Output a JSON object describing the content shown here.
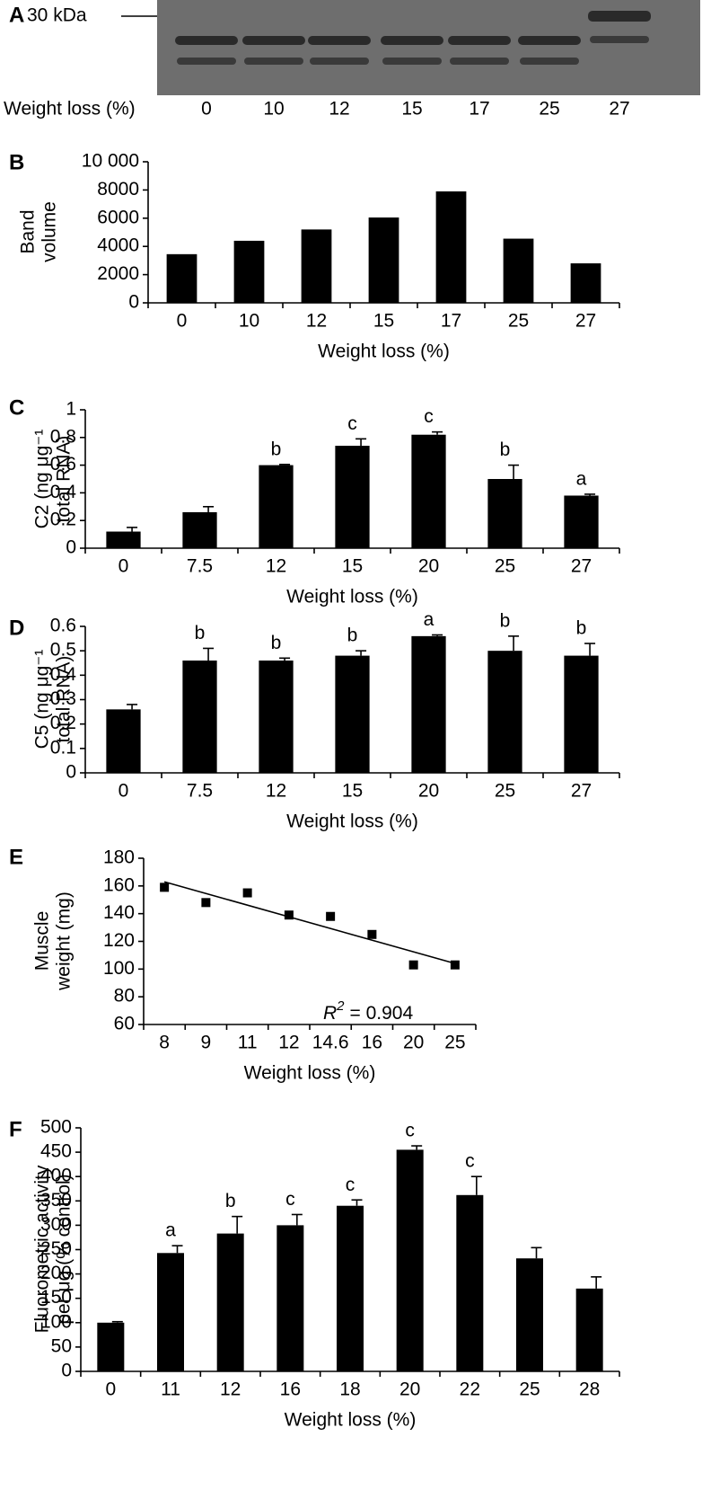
{
  "chart_data": [
    {
      "type": "blot",
      "panel": "A",
      "marker_label": "30 kDa",
      "x_label": "Weight loss (%)",
      "categories": [
        "0",
        "10",
        "12",
        "15",
        "17",
        "25",
        "27"
      ]
    },
    {
      "type": "bar",
      "panel": "B",
      "y_label": [
        "Band",
        "volume"
      ],
      "x_label": "Weight loss (%)",
      "categories": [
        "0",
        "10",
        "12",
        "15",
        "17",
        "25",
        "27"
      ],
      "values": [
        3450,
        4400,
        5200,
        6050,
        7900,
        4550,
        2800
      ],
      "color": "#000000",
      "ylim": [
        0,
        10000
      ],
      "yticks": [
        0,
        2000,
        4000,
        6000,
        8000,
        {
          "value": 10000,
          "label": "10 000"
        }
      ]
    },
    {
      "type": "bar",
      "panel": "C",
      "y_label": [
        "C2 (ng μg⁻¹",
        "total RNA)"
      ],
      "x_label": "Weight loss (%)",
      "categories": [
        "0",
        "7.5",
        "12",
        "15",
        "20",
        "25",
        "27"
      ],
      "values": [
        0.12,
        0.26,
        0.6,
        0.74,
        0.82,
        0.5,
        0.38
      ],
      "errors": [
        0.03,
        0.04,
        0.005,
        0.05,
        0.02,
        0.1,
        0.01
      ],
      "letters": [
        null,
        null,
        "b",
        "c",
        "c",
        "b",
        "a"
      ],
      "color": "#000000",
      "ylim": [
        0,
        1
      ],
      "yticks": [
        0,
        0.2,
        0.4,
        0.6,
        0.8,
        1
      ]
    },
    {
      "type": "bar",
      "panel": "D",
      "y_label": [
        "C5 (ng μg⁻¹",
        "total RNA)"
      ],
      "x_label": "Weight loss (%)",
      "categories": [
        "0",
        "7.5",
        "12",
        "15",
        "20",
        "25",
        "27"
      ],
      "values": [
        0.26,
        0.46,
        0.46,
        0.48,
        0.56,
        0.5,
        0.48
      ],
      "errors": [
        0.02,
        0.05,
        0.01,
        0.02,
        0.005,
        0.06,
        0.05
      ],
      "letters": [
        null,
        "b",
        "b",
        "b",
        "a",
        "b",
        "b"
      ],
      "color": "#000000",
      "ylim": [
        0,
        0.6
      ],
      "yticks": [
        0,
        0.1,
        0.2,
        0.3,
        0.4,
        0.5,
        0.6
      ]
    },
    {
      "type": "scatter",
      "panel": "E",
      "y_label": [
        "Muscle",
        "weight (mg)"
      ],
      "x_label": "Weight loss (%)",
      "categories": [
        "8",
        "9",
        "11",
        "12",
        "14.6",
        "16",
        "20",
        "25"
      ],
      "values": [
        159,
        148,
        155,
        139,
        138,
        125,
        103,
        103
      ],
      "color": "#000000",
      "trendline": {
        "start": 163,
        "end": 104
      },
      "r_squared": {
        "symbol": "R",
        "exponent": "2",
        "text": "= 0.904"
      },
      "ylim": [
        60,
        180
      ],
      "yticks": [
        60,
        80,
        100,
        120,
        140,
        160,
        180
      ]
    },
    {
      "type": "bar",
      "panel": "F",
      "y_label": [
        "Fluorometric activity",
        "per μg (% control)"
      ],
      "x_label": "Weight loss (%)",
      "categories": [
        "0",
        "11",
        "12",
        "16",
        "18",
        "20",
        "22",
        "25",
        "28"
      ],
      "values": [
        100,
        243,
        283,
        300,
        340,
        455,
        362,
        232,
        170
      ],
      "errors": [
        2,
        15,
        35,
        22,
        12,
        8,
        38,
        22,
        24
      ],
      "letters": [
        null,
        "a",
        "b",
        "c",
        "c",
        "c",
        "c",
        null,
        null
      ],
      "color": "#000000",
      "ylim": [
        0,
        500
      ],
      "yticks": [
        0,
        50,
        100,
        150,
        200,
        250,
        300,
        350,
        400,
        450,
        500
      ]
    }
  ]
}
